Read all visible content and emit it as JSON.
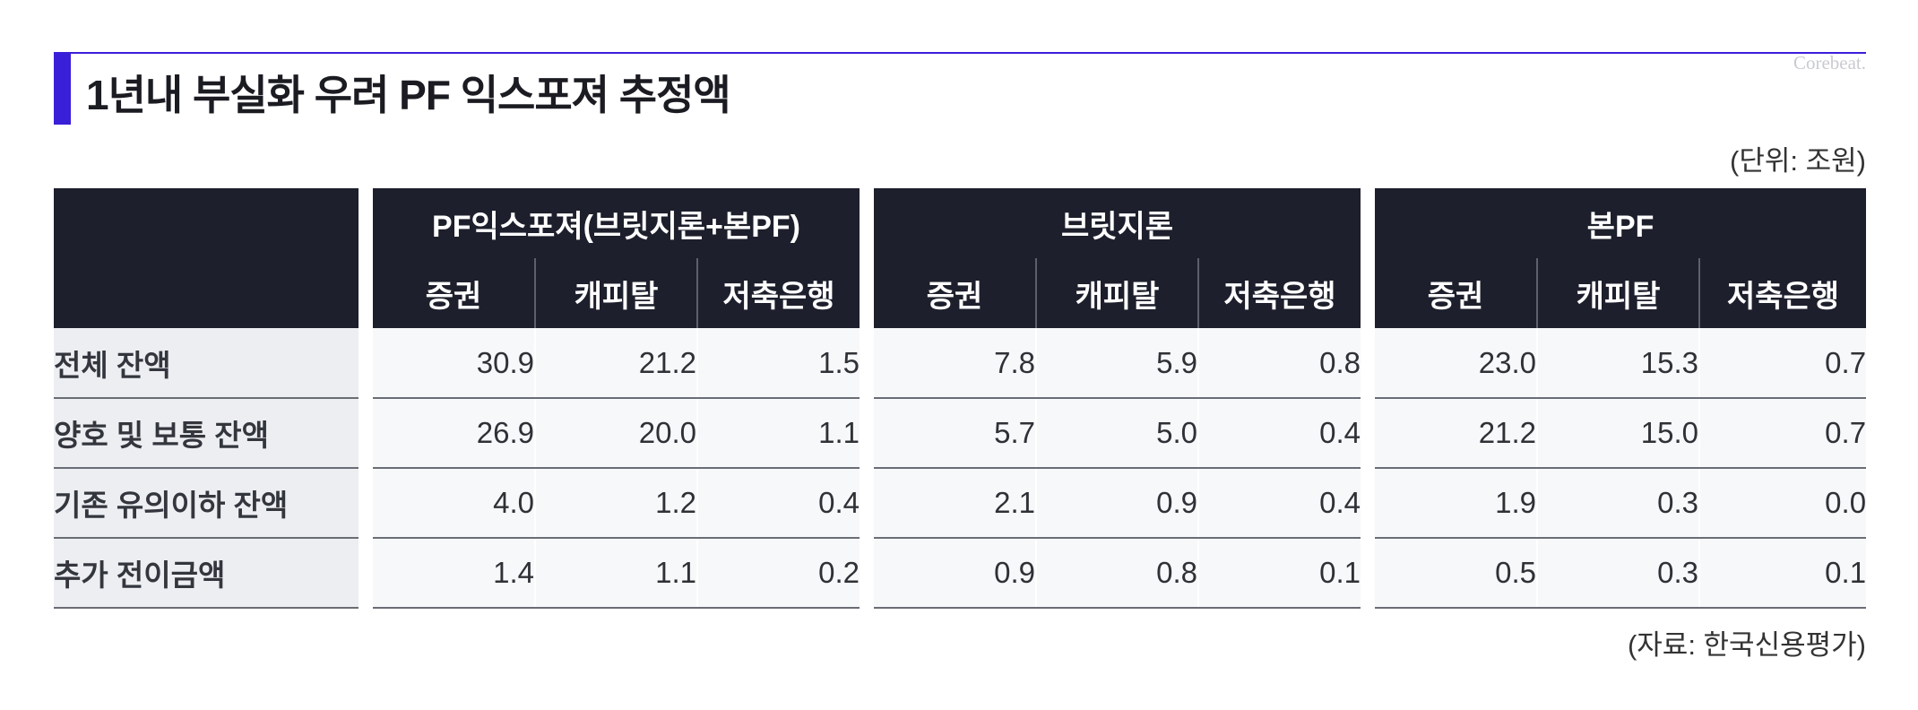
{
  "header": {
    "title": "1년내 부실화 우려 PF 익스포져 추정액",
    "logo_text": "Corebeat.",
    "unit_note": "(단위: 조원)"
  },
  "footer": {
    "source": "(자료: 한국신용평가)"
  },
  "colors": {
    "accent": "#3a1fd8",
    "header_bg": "#1d1f2c",
    "label_bg": "#eceef2",
    "cell_bg": "#f7f8fa"
  },
  "chart_data": {
    "type": "table",
    "title": "1년내 부실화 우려 PF 익스포져 추정액",
    "unit": "(단위: 조원)",
    "groups": [
      {
        "label": "PF익스포져(브릿지론+본PF)",
        "columns": [
          "증권",
          "캐피탈",
          "저축은행"
        ]
      },
      {
        "label": "브릿지론",
        "columns": [
          "증권",
          "캐피탈",
          "저축은행"
        ]
      },
      {
        "label": "본PF",
        "columns": [
          "증권",
          "캐피탈",
          "저축은행"
        ]
      }
    ],
    "rows": [
      {
        "label": "전체 잔액",
        "values": [
          "30.9",
          "21.2",
          "1.5",
          "7.8",
          "5.9",
          "0.8",
          "23.0",
          "15.3",
          "0.7"
        ]
      },
      {
        "label": "양호 및 보통 잔액",
        "values": [
          "26.9",
          "20.0",
          "1.1",
          "5.7",
          "5.0",
          "0.4",
          "21.2",
          "15.0",
          "0.7"
        ]
      },
      {
        "label": "기존 유의이하 잔액",
        "values": [
          "4.0",
          "1.2",
          "0.4",
          "2.1",
          "0.9",
          "0.4",
          "1.9",
          "0.3",
          "0.0"
        ]
      },
      {
        "label": "추가 전이금액",
        "values": [
          "1.4",
          "1.1",
          "0.2",
          "0.9",
          "0.8",
          "0.1",
          "0.5",
          "0.3",
          "0.1"
        ]
      }
    ],
    "source": "(자료: 한국신용평가)"
  }
}
